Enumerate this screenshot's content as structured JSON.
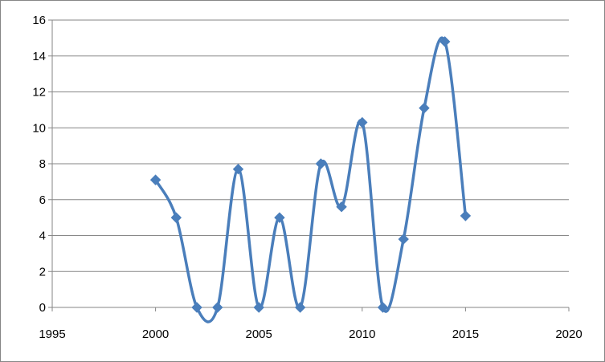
{
  "chart_data": {
    "type": "scatter",
    "title": "",
    "xlabel": "",
    "ylabel": "",
    "xlim": [
      1995,
      2020
    ],
    "ylim": [
      0,
      16
    ],
    "xticks": [
      1995,
      2000,
      2005,
      2010,
      2015,
      2020
    ],
    "yticks": [
      0,
      2,
      4,
      6,
      8,
      10,
      12,
      14,
      16
    ],
    "grid": "horizontal",
    "legend": "none",
    "line_style": "smoothed",
    "marker": "diamond",
    "color": "#4a7ebb",
    "series": [
      {
        "x": [
          2000,
          2001,
          2002,
          2003,
          2004,
          2005,
          2006,
          2007,
          2008,
          2009,
          2010,
          2011,
          2012,
          2013,
          2014,
          2015
        ],
        "y": [
          7.1,
          5.0,
          0,
          0,
          7.7,
          0,
          5.0,
          0,
          8.0,
          5.6,
          10.3,
          0,
          3.8,
          11.1,
          14.8,
          5.1
        ]
      }
    ]
  }
}
